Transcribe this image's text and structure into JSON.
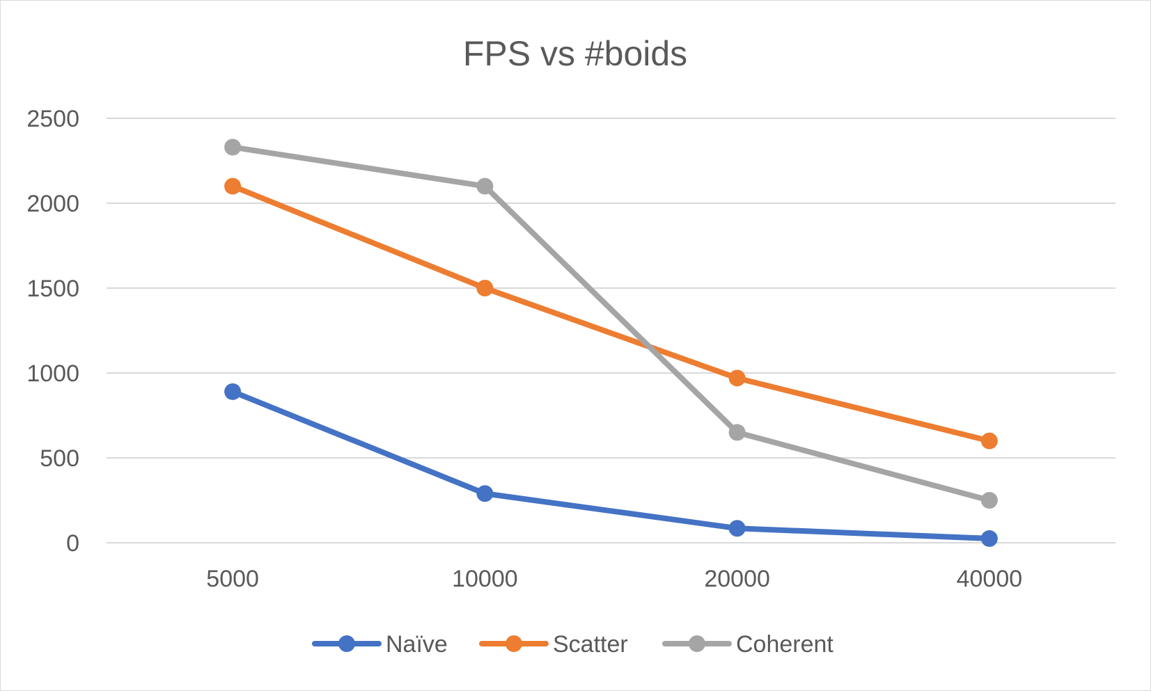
{
  "chart_data": {
    "type": "line",
    "title": "FPS vs #boids",
    "xlabel": "",
    "ylabel": "",
    "categories": [
      "5000",
      "10000",
      "20000",
      "40000"
    ],
    "ylim": [
      0,
      2500
    ],
    "yticks": [
      0,
      500,
      1000,
      1500,
      2000,
      2500
    ],
    "grid": true,
    "legend": "bottom",
    "series": [
      {
        "name": "Naïve",
        "color": "#4472c4",
        "values": [
          890,
          290,
          85,
          25
        ]
      },
      {
        "name": "Scatter",
        "color": "#ed7d31",
        "values": [
          2100,
          1500,
          970,
          600
        ]
      },
      {
        "name": "Coherent",
        "color": "#a5a5a5",
        "values": [
          2330,
          2100,
          650,
          250
        ]
      }
    ]
  }
}
